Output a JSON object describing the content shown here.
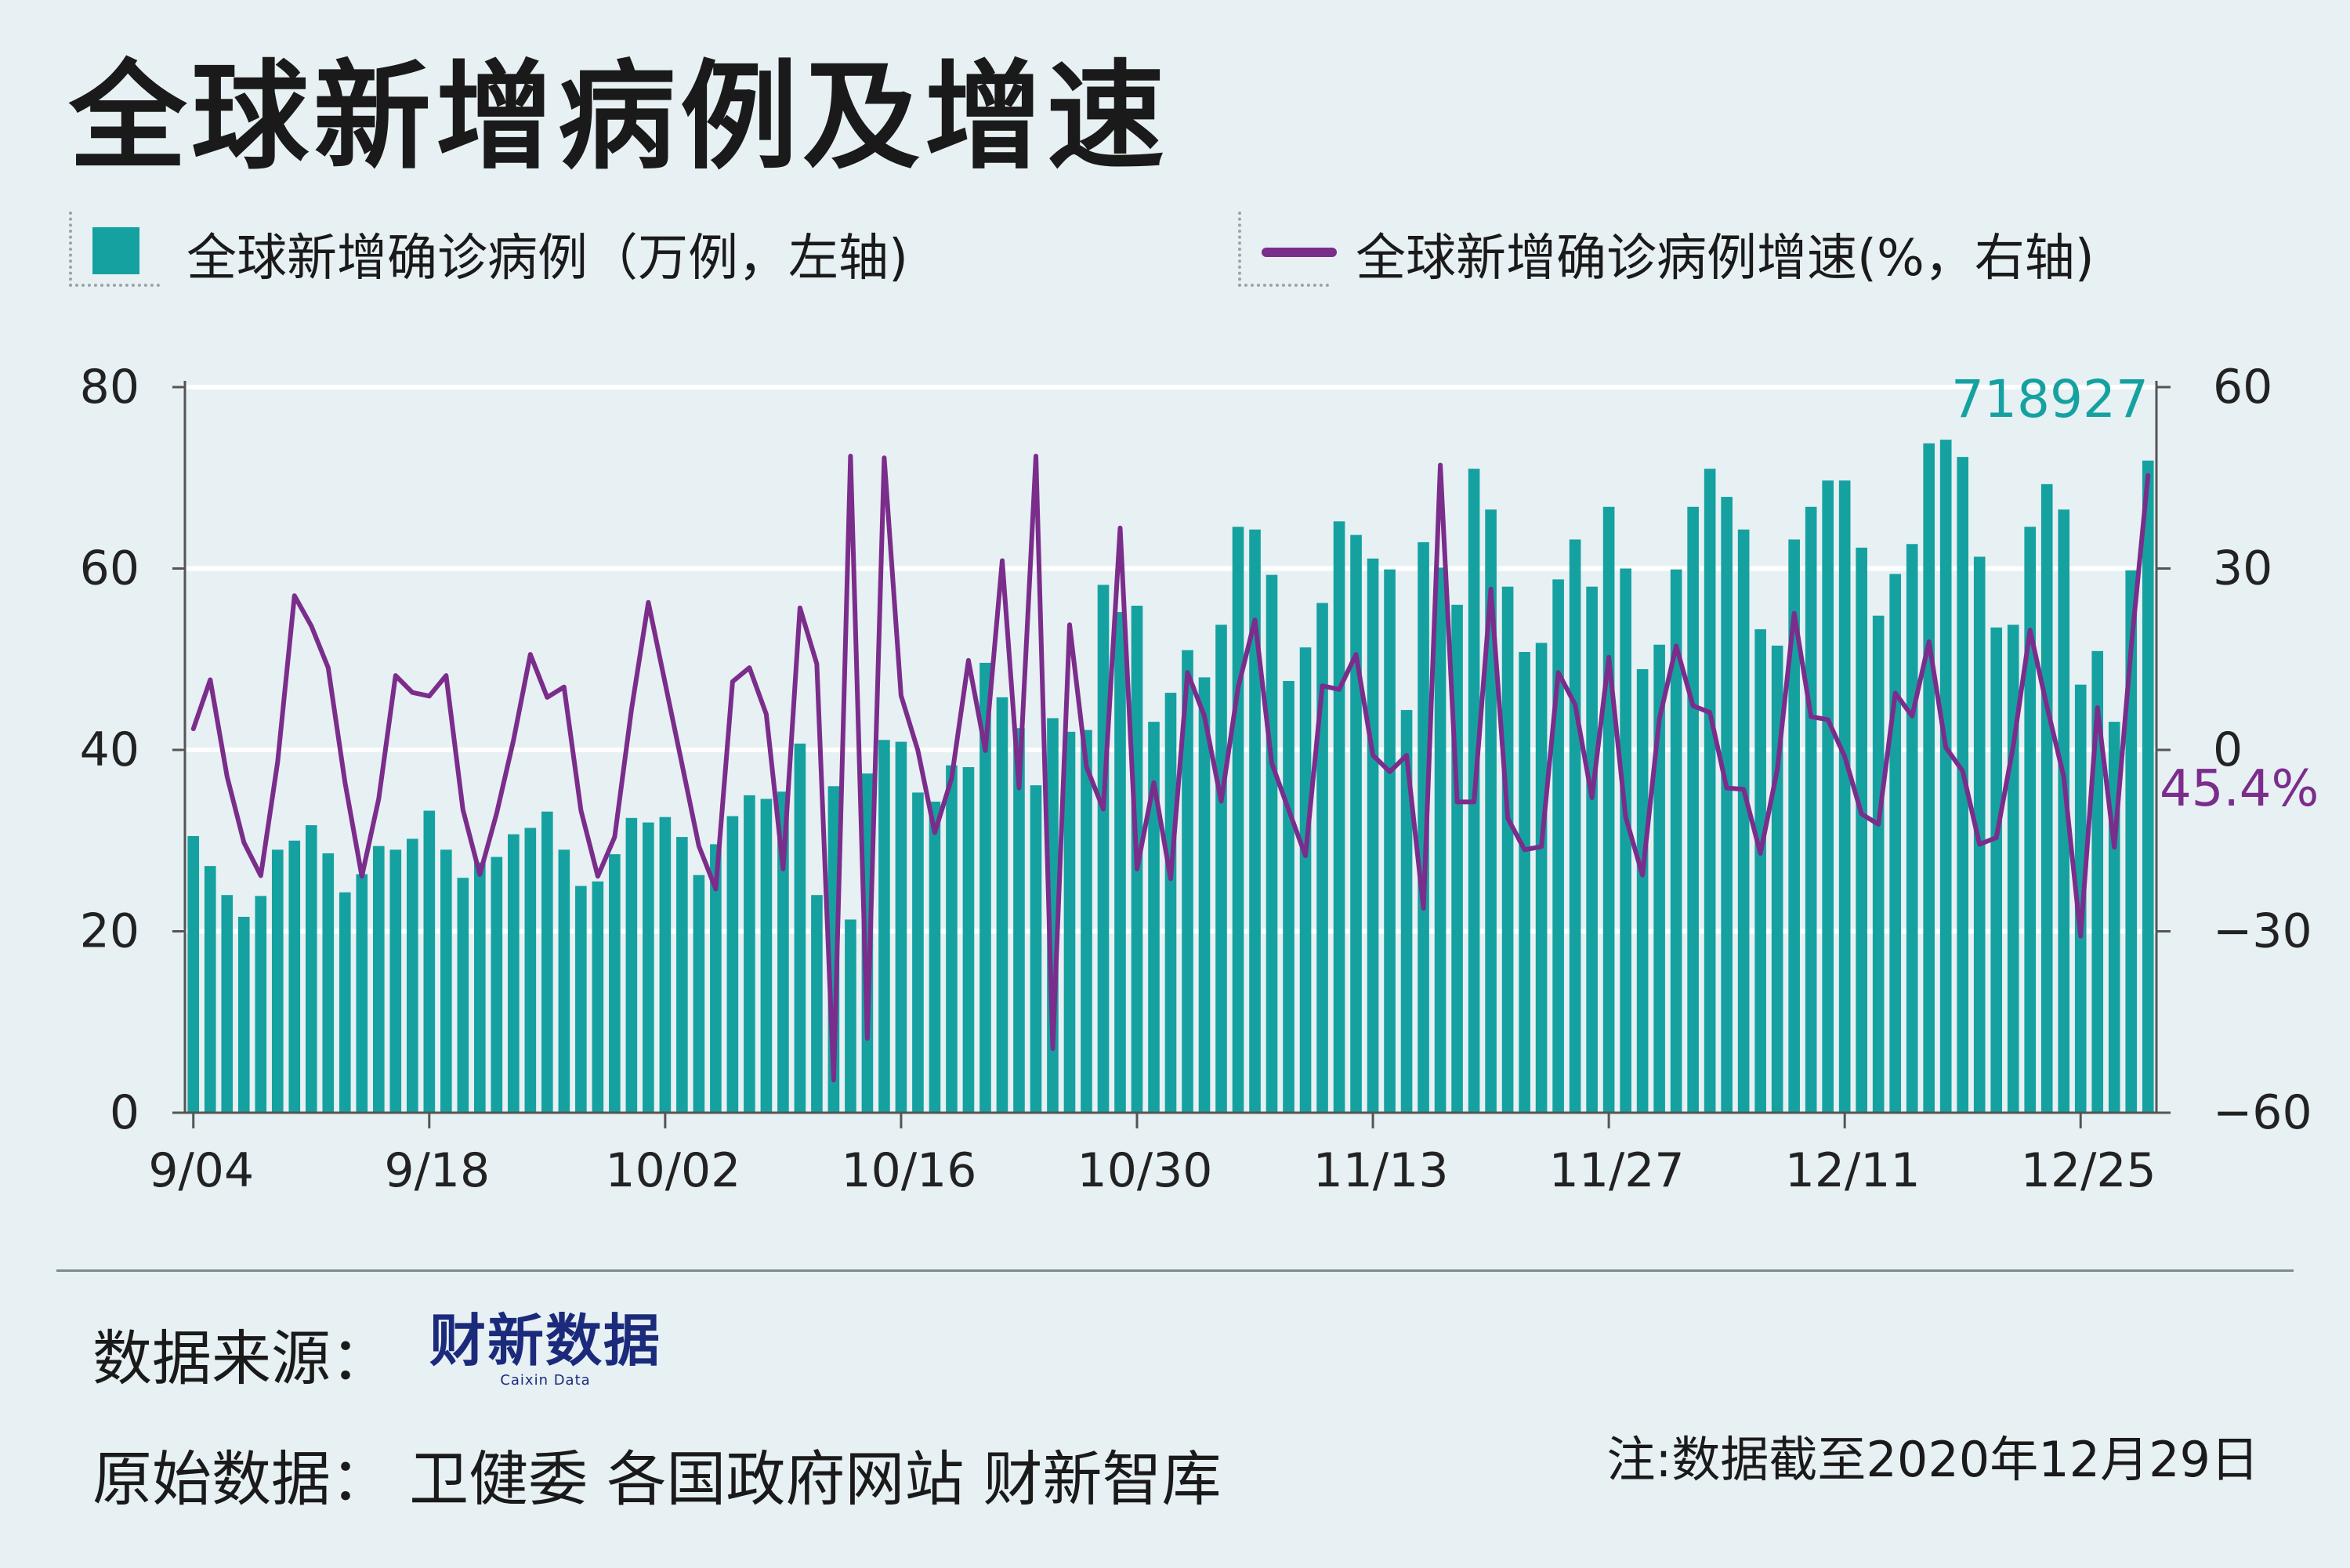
{
  "title": "全球新增病例及增速",
  "legend": {
    "bars_label": "全球新增确诊病例（万例，左轴)",
    "line_label": "全球新增确诊病例增速(%，右轴)"
  },
  "colors": {
    "bar": "#16a1a1",
    "line": "#7b2d8b",
    "bar_label": "#16a1a1",
    "line_label": "#7b2d8b",
    "background": "#e7f0f3",
    "grid": "#ffffff"
  },
  "chart_data": {
    "type": "bar+line",
    "x_tick_labels": [
      "9/04",
      "9/18",
      "10/02",
      "10/16",
      "10/30",
      "11/13",
      "11/27",
      "12/11",
      "12/25"
    ],
    "categories": [
      "9/04",
      "9/05",
      "9/06",
      "9/07",
      "9/08",
      "9/09",
      "9/10",
      "9/11",
      "9/12",
      "9/13",
      "9/14",
      "9/15",
      "9/16",
      "9/17",
      "9/18",
      "9/19",
      "9/20",
      "9/21",
      "9/22",
      "9/23",
      "9/24",
      "9/25",
      "9/26",
      "9/27",
      "9/28",
      "9/29",
      "9/30",
      "10/01",
      "10/02",
      "10/03",
      "10/04",
      "10/05",
      "10/06",
      "10/07",
      "10/08",
      "10/09",
      "10/10",
      "10/11",
      "10/12",
      "10/13",
      "10/14",
      "10/15",
      "10/16",
      "10/17",
      "10/18",
      "10/19",
      "10/20",
      "10/21",
      "10/22",
      "10/23",
      "10/24",
      "10/25",
      "10/26",
      "10/27",
      "10/28",
      "10/29",
      "10/30",
      "10/31",
      "11/01",
      "11/02",
      "11/03",
      "11/04",
      "11/05",
      "11/06",
      "11/07",
      "11/08",
      "11/09",
      "11/10",
      "11/11",
      "11/12",
      "11/13",
      "11/14",
      "11/15",
      "11/16",
      "11/17",
      "11/18",
      "11/19",
      "11/20",
      "11/21",
      "11/22",
      "11/23",
      "11/24",
      "11/25",
      "11/26",
      "11/27",
      "11/28",
      "11/29",
      "11/30",
      "12/01",
      "12/02",
      "12/03",
      "12/04",
      "12/05",
      "12/06",
      "12/07",
      "12/08",
      "12/09",
      "12/10",
      "12/11",
      "12/12",
      "12/13",
      "12/14",
      "12/15",
      "12/16",
      "12/17",
      "12/18",
      "12/19",
      "12/20",
      "12/21",
      "12/22",
      "12/23",
      "12/24",
      "12/25",
      "12/26",
      "12/27",
      "12/28",
      "12/29"
    ],
    "series": [
      {
        "name": "全球新增确诊病例（万例，左轴)",
        "type": "bar",
        "axis": "left",
        "values": [
          30.5,
          27.2,
          24.0,
          21.6,
          23.9,
          29.0,
          30.0,
          31.7,
          28.6,
          24.3,
          26.3,
          29.4,
          29.0,
          30.2,
          33.3,
          29.0,
          25.9,
          27.6,
          28.2,
          30.7,
          31.4,
          33.2,
          29.0,
          25.0,
          25.5,
          28.5,
          32.5,
          32.0,
          32.6,
          30.4,
          26.2,
          29.6,
          32.7,
          35.0,
          34.6,
          35.4,
          40.7,
          24.0,
          36.0,
          21.3,
          37.4,
          41.1,
          40.9,
          35.3,
          34.3,
          38.3,
          38.1,
          49.6,
          45.8,
          42.4,
          36.1,
          43.5,
          42.0,
          42.2,
          58.2,
          55.2,
          55.9,
          43.1,
          46.3,
          51.0,
          48.0,
          53.8,
          64.6,
          64.3,
          59.3,
          47.6,
          51.3,
          56.2,
          65.2,
          63.7,
          61.1,
          59.9,
          44.4,
          62.9,
          60.1,
          56.0,
          71.0,
          66.5,
          58.0,
          50.8,
          51.8,
          58.8,
          63.2,
          58.0,
          66.8,
          60.0,
          48.9,
          51.6,
          59.9,
          66.8,
          71.0,
          67.9,
          64.3,
          53.3,
          51.5,
          63.2,
          66.8,
          69.7,
          69.7,
          62.3,
          54.8,
          59.4,
          62.7,
          73.8,
          74.2,
          72.3,
          61.3,
          53.5,
          53.8,
          64.6,
          69.3,
          66.5,
          47.2,
          50.9,
          43.1,
          59.8,
          71.9
        ]
      },
      {
        "name": "全球新增确诊病例增速(%，右轴)",
        "type": "line",
        "axis": "right",
        "values": [
          3.5,
          11.6,
          -4.4,
          -15.3,
          -20.8,
          -2.0,
          25.5,
          20.5,
          13.6,
          -5.4,
          -20.9,
          -8.1,
          12.3,
          9.5,
          8.9,
          12.3,
          -9.9,
          -20.6,
          -10.5,
          1.6,
          15.8,
          8.7,
          10.4,
          -10.0,
          -20.9,
          -14.4,
          6.7,
          24.4,
          11.0,
          -2.4,
          -15.9,
          -23.0,
          11.3,
          13.6,
          5.9,
          -19.7,
          23.5,
          14.2,
          -54.6,
          48.6,
          -47.7,
          48.3,
          9.0,
          -0.1,
          -13.7,
          -4.7,
          14.8,
          -0.1,
          31.3,
          -6.3,
          48.6,
          -49.4,
          20.7,
          -2.8,
          -9.8,
          36.7,
          -19.7,
          -5.4,
          -21.3,
          12.8,
          5.6,
          -8.5,
          10.3,
          21.5,
          -2.2,
          -9.9,
          -17.5,
          10.6,
          10.0,
          15.8,
          -0.9,
          -3.6,
          -0.9,
          -26.2,
          47.1,
          -8.6,
          -8.6,
          26.6,
          -11.3,
          -16.5,
          -16.0,
          12.8,
          7.5,
          -7.9,
          15.3,
          -11.1,
          -20.7,
          5.1,
          17.2,
          7.3,
          6.2,
          -6.3,
          -6.5,
          -17.1,
          -3.2,
          22.6,
          5.5,
          5.0,
          -1.1,
          -10.6,
          -12.3,
          9.4,
          5.6,
          17.9,
          0.4,
          -3.5,
          -15.6,
          -14.5,
          0.6,
          19.8,
          7.2,
          -4.4,
          -30.8,
          7.0,
          -16.1,
          16.9,
          45.4
        ]
      }
    ],
    "y_left": {
      "range": [
        0,
        80
      ],
      "ticks": [
        0,
        20,
        40,
        60,
        80
      ]
    },
    "y_right": {
      "range": [
        -60,
        60
      ],
      "ticks": [
        "−60",
        "−30",
        "0",
        "30",
        "60"
      ]
    },
    "grid": true,
    "annotations": {
      "last_bar_value": "718927",
      "last_line_value": "45.4%"
    }
  },
  "footer": {
    "source_label": "数据来源：",
    "brand_name": "财新数据",
    "brand_sub": "Caixin Data",
    "raw_data": "原始数据：  卫健委 各国政府网站 财新智库",
    "note": "注:数据截至2020年12月29日"
  }
}
